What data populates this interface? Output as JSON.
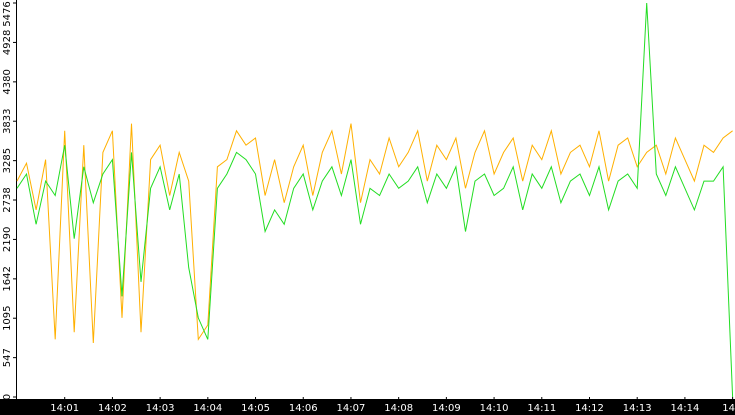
{
  "chart_data": {
    "type": "line",
    "x": [
      0,
      0.2,
      0.4,
      0.6,
      0.8,
      1,
      1.2,
      1.4,
      1.6,
      1.8,
      2,
      2.2,
      2.4,
      2.6,
      2.8,
      3,
      3.2,
      3.4,
      3.6,
      3.8,
      4,
      4.2,
      4.4,
      4.6,
      4.8,
      5,
      5.2,
      5.4,
      5.6,
      5.8,
      6,
      6.2,
      6.4,
      6.6,
      6.8,
      7,
      7.2,
      7.4,
      7.6,
      7.8,
      8,
      8.2,
      8.4,
      8.6,
      8.8,
      9,
      9.2,
      9.4,
      9.6,
      9.8,
      10,
      10.2,
      10.4,
      10.6,
      10.8,
      11,
      11.2,
      11.4,
      11.6,
      11.8,
      12,
      12.2,
      12.4,
      12.6,
      12.8,
      13,
      13.2,
      13.4,
      13.6,
      13.8,
      14,
      14.2,
      14.4,
      14.6,
      14.8,
      15
    ],
    "series": [
      {
        "color": "#ffb000",
        "values": [
          3000,
          3250,
          2600,
          3300,
          800,
          3700,
          900,
          3500,
          750,
          3400,
          3700,
          1100,
          3800,
          900,
          3300,
          3500,
          2800,
          3400,
          3000,
          800,
          1000,
          3200,
          3300,
          3700,
          3500,
          3600,
          2800,
          3300,
          2700,
          3200,
          3500,
          2800,
          3400,
          3700,
          3100,
          3800,
          2700,
          3300,
          3100,
          3600,
          3200,
          3400,
          3700,
          3000,
          3500,
          3300,
          3600,
          2900,
          3400,
          3700,
          3100,
          3400,
          3600,
          3000,
          3500,
          3300,
          3700,
          3100,
          3400,
          3500,
          3200,
          3700,
          3000,
          3500,
          3600,
          3200,
          3400,
          3500,
          3100,
          3600,
          3300,
          3000,
          3500,
          3400,
          3600,
          3700
        ]
      },
      {
        "color": "#22dd22",
        "values": [
          2900,
          3100,
          2400,
          3000,
          2800,
          3500,
          2200,
          3200,
          2700,
          3100,
          3300,
          1400,
          3400,
          1600,
          2900,
          3200,
          2600,
          3100,
          1800,
          1100,
          800,
          2900,
          3100,
          3400,
          3300,
          3100,
          2300,
          2600,
          2400,
          2900,
          3100,
          2600,
          3000,
          3200,
          2800,
          3300,
          2400,
          2900,
          2800,
          3100,
          2900,
          3000,
          3200,
          2700,
          3100,
          2900,
          3200,
          2300,
          3000,
          3100,
          2800,
          2900,
          3200,
          2600,
          3100,
          2900,
          3200,
          2700,
          3000,
          3100,
          2800,
          3200,
          2600,
          3000,
          3100,
          2900,
          5476,
          3100,
          2800,
          3200,
          2900,
          2600,
          3000,
          3000,
          3200,
          0
        ]
      }
    ],
    "xlim": [
      0,
      15.05
    ],
    "xticks": [
      {
        "value": 1,
        "label": "14:01"
      },
      {
        "value": 2,
        "label": "14:02"
      },
      {
        "value": 3,
        "label": "14:03"
      },
      {
        "value": 4,
        "label": "14:04"
      },
      {
        "value": 5,
        "label": "14:05"
      },
      {
        "value": 6,
        "label": "14:06"
      },
      {
        "value": 7,
        "label": "14:07"
      },
      {
        "value": 8,
        "label": "14:08"
      },
      {
        "value": 9,
        "label": "14:09"
      },
      {
        "value": 10,
        "label": "14:10"
      },
      {
        "value": 11,
        "label": "14:11"
      },
      {
        "value": 12,
        "label": "14:12"
      },
      {
        "value": 13,
        "label": "14:13"
      },
      {
        "value": 14,
        "label": "14:14"
      },
      {
        "value": 15,
        "label": "14"
      }
    ],
    "ylim": [
      0,
      5476
    ],
    "yticks": [
      0,
      547,
      1095,
      1642,
      2190,
      2738,
      3285,
      3833,
      4380,
      4928,
      5476
    ]
  }
}
